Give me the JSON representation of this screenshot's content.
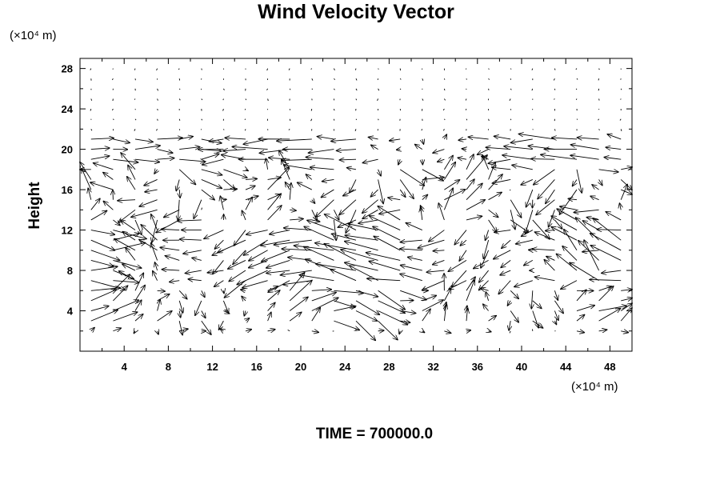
{
  "chart_data": {
    "type": "vector_field",
    "title": "Wind Velocity Vector",
    "ylabel": "Height",
    "xlabel": "",
    "x_unit": "(×10⁴ m)",
    "y_unit": "(×10⁴ m)",
    "xlim": [
      0,
      50
    ],
    "ylim": [
      0,
      29
    ],
    "x_ticks": [
      4,
      8,
      12,
      16,
      20,
      24,
      28,
      32,
      36,
      40,
      44,
      48
    ],
    "y_ticks": [
      4,
      8,
      12,
      16,
      20,
      24,
      28
    ],
    "grid": false,
    "grid_spacing": {
      "dx": 2,
      "dy": 2
    },
    "footer": "TIME = 700000.0",
    "seed": 7
  }
}
